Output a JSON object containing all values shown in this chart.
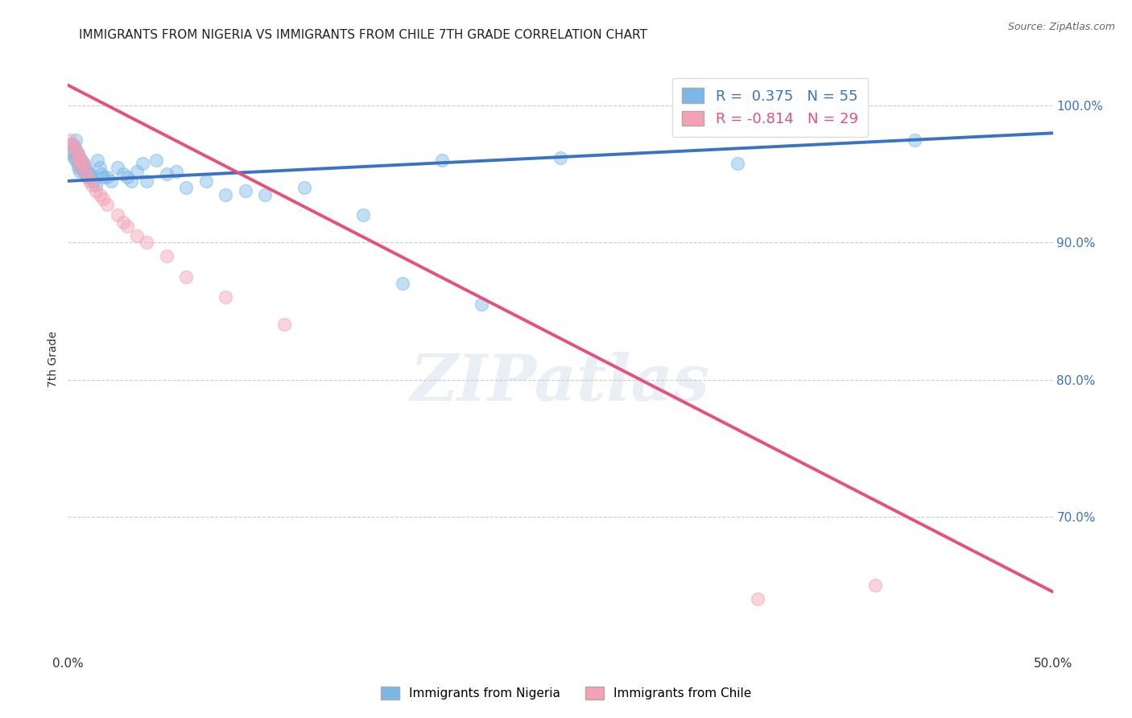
{
  "title": "IMMIGRANTS FROM NIGERIA VS IMMIGRANTS FROM CHILE 7TH GRADE CORRELATION CHART",
  "source": "Source: ZipAtlas.com",
  "ylabel": "7th Grade",
  "xlim": [
    0.0,
    0.5
  ],
  "ylim": [
    0.6,
    1.03
  ],
  "yticks_right": [
    0.7,
    0.8,
    0.9,
    1.0
  ],
  "ytick_labels_right": [
    "70.0%",
    "80.0%",
    "90.0%",
    "100.0%"
  ],
  "xticks": [
    0.0,
    0.1,
    0.2,
    0.3,
    0.4,
    0.5
  ],
  "xtick_labels": [
    "0.0%",
    "",
    "",
    "",
    "",
    "50.0%"
  ],
  "nigeria_color": "#7BB8E8",
  "chile_color": "#F4A0B5",
  "nigeria_line_color": "#3A72C4",
  "chile_line_color": "#E8507A",
  "nigeria_R": 0.375,
  "nigeria_N": 55,
  "chile_R": -0.814,
  "chile_N": 29,
  "legend_label_nigeria": "Immigrants from Nigeria",
  "legend_label_chile": "Immigrants from Chile",
  "watermark": "ZIPatlas",
  "background_color": "#ffffff",
  "grid_color": "#cccccc",
  "nigeria_line_x": [
    0.0,
    0.5
  ],
  "nigeria_line_y": [
    0.945,
    0.98
  ],
  "chile_line_x": [
    0.0,
    0.5
  ],
  "chile_line_y": [
    1.015,
    0.645
  ],
  "nigeria_scatter_x": [
    0.001,
    0.002,
    0.002,
    0.003,
    0.003,
    0.004,
    0.004,
    0.004,
    0.005,
    0.005,
    0.005,
    0.006,
    0.006,
    0.006,
    0.007,
    0.007,
    0.008,
    0.008,
    0.009,
    0.009,
    0.01,
    0.01,
    0.011,
    0.012,
    0.013,
    0.014,
    0.015,
    0.016,
    0.017,
    0.018,
    0.02,
    0.022,
    0.025,
    0.028,
    0.03,
    0.032,
    0.035,
    0.038,
    0.04,
    0.045,
    0.05,
    0.055,
    0.06,
    0.07,
    0.08,
    0.09,
    0.1,
    0.12,
    0.15,
    0.17,
    0.19,
    0.21,
    0.25,
    0.34,
    0.43
  ],
  "nigeria_scatter_y": [
    0.968,
    0.972,
    0.965,
    0.97,
    0.962,
    0.975,
    0.968,
    0.96,
    0.965,
    0.958,
    0.955,
    0.962,
    0.958,
    0.952,
    0.96,
    0.955,
    0.958,
    0.952,
    0.955,
    0.95,
    0.952,
    0.948,
    0.95,
    0.948,
    0.945,
    0.942,
    0.96,
    0.955,
    0.95,
    0.948,
    0.948,
    0.945,
    0.955,
    0.95,
    0.948,
    0.945,
    0.952,
    0.958,
    0.945,
    0.96,
    0.95,
    0.952,
    0.94,
    0.945,
    0.935,
    0.938,
    0.935,
    0.94,
    0.92,
    0.87,
    0.96,
    0.855,
    0.962,
    0.958,
    0.975
  ],
  "chile_scatter_x": [
    0.001,
    0.002,
    0.003,
    0.004,
    0.005,
    0.005,
    0.006,
    0.006,
    0.007,
    0.008,
    0.009,
    0.01,
    0.011,
    0.012,
    0.014,
    0.016,
    0.018,
    0.02,
    0.025,
    0.028,
    0.03,
    0.035,
    0.04,
    0.05,
    0.06,
    0.08,
    0.11,
    0.35,
    0.41
  ],
  "chile_scatter_y": [
    0.975,
    0.972,
    0.97,
    0.968,
    0.965,
    0.962,
    0.96,
    0.958,
    0.955,
    0.958,
    0.952,
    0.948,
    0.945,
    0.942,
    0.938,
    0.935,
    0.932,
    0.928,
    0.92,
    0.915,
    0.912,
    0.905,
    0.9,
    0.89,
    0.875,
    0.86,
    0.84,
    0.64,
    0.65
  ]
}
